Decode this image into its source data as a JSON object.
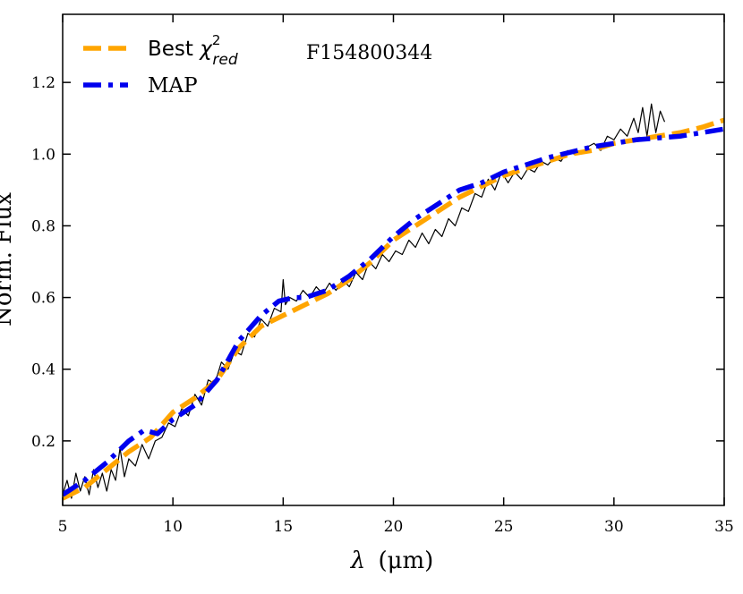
{
  "chart_data": {
    "type": "line",
    "title": "",
    "annotation": "F154800344",
    "xlabel_symbol": "λ",
    "xlabel_unit": "(μm)",
    "ylabel": "Norm. Flux",
    "xlim": [
      5,
      35
    ],
    "ylim": [
      0.02,
      1.39
    ],
    "xticks": [
      5,
      10,
      15,
      20,
      25,
      30,
      35
    ],
    "yticks": [
      0.2,
      0.4,
      0.6,
      0.8,
      1.0,
      1.2
    ],
    "legend": {
      "position": "top-left",
      "entries": [
        {
          "series": "best",
          "label_main": "Best ",
          "label_chi": "χ",
          "label_sup": "2",
          "label_sub": "red"
        },
        {
          "series": "map",
          "label_main": "MAP"
        }
      ]
    },
    "series": [
      {
        "name": "Observed spectrum",
        "key": "observed",
        "color": "#000000",
        "style": "solid-thin",
        "x": [
          5.0,
          5.2,
          5.4,
          5.6,
          5.8,
          6.0,
          6.2,
          6.4,
          6.6,
          6.8,
          7.0,
          7.2,
          7.4,
          7.6,
          7.8,
          8.0,
          8.3,
          8.6,
          8.9,
          9.2,
          9.5,
          9.8,
          10.1,
          10.4,
          10.7,
          11.0,
          11.3,
          11.6,
          11.9,
          12.2,
          12.5,
          12.8,
          13.1,
          13.4,
          13.7,
          14.0,
          14.3,
          14.6,
          14.9,
          15.0,
          15.1,
          15.3,
          15.6,
          15.9,
          16.2,
          16.5,
          16.8,
          17.1,
          17.4,
          17.7,
          18.0,
          18.3,
          18.6,
          18.9,
          19.2,
          19.5,
          19.8,
          20.1,
          20.4,
          20.7,
          21.0,
          21.3,
          21.6,
          21.9,
          22.2,
          22.5,
          22.8,
          23.1,
          23.4,
          23.7,
          24.0,
          24.3,
          24.6,
          24.9,
          25.2,
          25.5,
          25.8,
          26.1,
          26.4,
          26.7,
          27.0,
          27.3,
          27.6,
          27.9,
          28.2,
          28.5,
          28.8,
          29.1,
          29.4,
          29.7,
          30.0,
          30.3,
          30.6,
          30.9,
          31.1,
          31.3,
          31.5,
          31.7,
          31.9,
          32.1,
          32.3
        ],
        "y": [
          0.05,
          0.09,
          0.04,
          0.11,
          0.06,
          0.1,
          0.05,
          0.12,
          0.07,
          0.11,
          0.06,
          0.12,
          0.09,
          0.18,
          0.1,
          0.15,
          0.13,
          0.19,
          0.15,
          0.2,
          0.21,
          0.25,
          0.24,
          0.29,
          0.27,
          0.33,
          0.3,
          0.37,
          0.36,
          0.42,
          0.4,
          0.45,
          0.44,
          0.5,
          0.49,
          0.54,
          0.52,
          0.57,
          0.56,
          0.65,
          0.58,
          0.6,
          0.59,
          0.62,
          0.6,
          0.63,
          0.61,
          0.64,
          0.62,
          0.65,
          0.63,
          0.67,
          0.65,
          0.7,
          0.68,
          0.72,
          0.7,
          0.73,
          0.72,
          0.76,
          0.74,
          0.78,
          0.75,
          0.79,
          0.77,
          0.82,
          0.8,
          0.85,
          0.84,
          0.89,
          0.88,
          0.93,
          0.9,
          0.95,
          0.92,
          0.95,
          0.93,
          0.96,
          0.95,
          0.98,
          0.97,
          0.99,
          0.98,
          1.01,
          1.0,
          1.0,
          1.02,
          1.03,
          1.01,
          1.05,
          1.04,
          1.07,
          1.05,
          1.1,
          1.06,
          1.13,
          1.05,
          1.14,
          1.06,
          1.12,
          1.09
        ]
      },
      {
        "name": "Best χ²red",
        "key": "best",
        "color": "#FFA500",
        "style": "dashed",
        "x": [
          5,
          6,
          7,
          8,
          9,
          10,
          11,
          12,
          13,
          14,
          15,
          16,
          17,
          18,
          19,
          20,
          21,
          22,
          23,
          24,
          25,
          26,
          27,
          28,
          29,
          30,
          31,
          32,
          33,
          34,
          35
        ],
        "y": [
          0.04,
          0.07,
          0.12,
          0.17,
          0.21,
          0.28,
          0.32,
          0.37,
          0.46,
          0.52,
          0.55,
          0.58,
          0.61,
          0.65,
          0.7,
          0.76,
          0.8,
          0.84,
          0.88,
          0.91,
          0.94,
          0.96,
          0.98,
          1.0,
          1.01,
          1.03,
          1.04,
          1.05,
          1.06,
          1.075,
          1.095
        ]
      },
      {
        "name": "MAP",
        "key": "map",
        "color": "#0000EE",
        "style": "dashdot",
        "x": [
          5,
          6,
          7,
          8,
          8.7,
          9.3,
          10,
          11,
          12,
          13,
          14,
          14.8,
          15.5,
          16,
          17,
          18,
          19,
          20,
          21,
          22,
          23,
          24,
          25,
          26,
          27,
          28,
          29,
          30,
          31,
          32,
          33,
          34,
          35
        ],
        "y": [
          0.05,
          0.09,
          0.14,
          0.2,
          0.23,
          0.22,
          0.26,
          0.3,
          0.37,
          0.48,
          0.55,
          0.59,
          0.6,
          0.6,
          0.62,
          0.66,
          0.71,
          0.77,
          0.82,
          0.86,
          0.9,
          0.92,
          0.95,
          0.97,
          0.99,
          1.005,
          1.02,
          1.03,
          1.04,
          1.045,
          1.05,
          1.06,
          1.07
        ]
      }
    ]
  }
}
